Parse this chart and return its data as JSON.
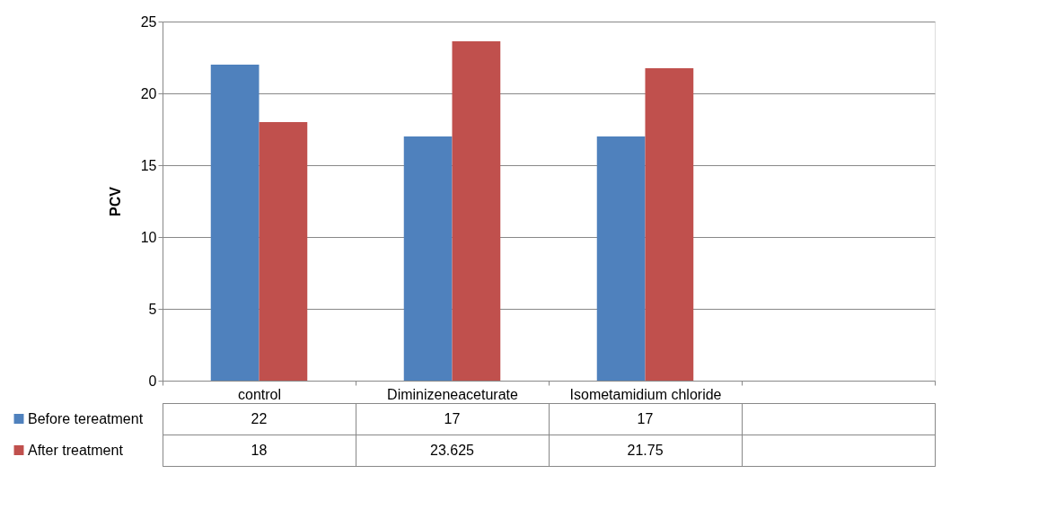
{
  "chart_data": {
    "type": "bar",
    "ylabel": "PCV",
    "categories": [
      "control",
      "Diminizeneaceturate",
      "Isometamidium chloride",
      null
    ],
    "series": [
      {
        "name": "Before tereatment",
        "color": "#4f81bd",
        "values": [
          22,
          17,
          17,
          null
        ]
      },
      {
        "name": "After treatment",
        "color": "#c0504d",
        "values": [
          18,
          23.625,
          21.75,
          null
        ]
      }
    ],
    "ylim": [
      0,
      25
    ],
    "yticks": [
      0,
      5,
      10,
      15,
      20,
      25
    ],
    "grid": "y",
    "legend": "bottom left",
    "data_labels": true
  }
}
